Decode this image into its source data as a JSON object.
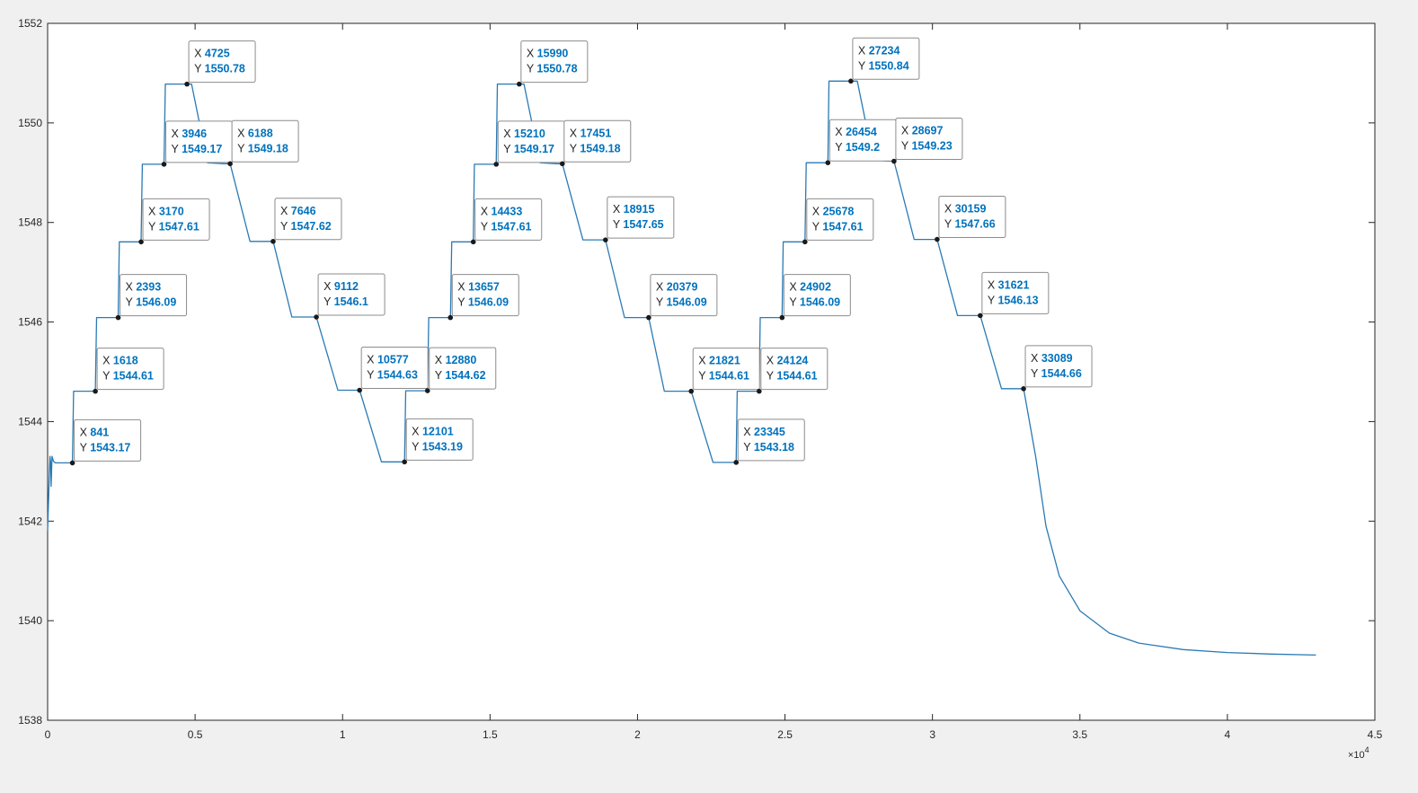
{
  "chart_data": {
    "type": "line",
    "title": "",
    "xlabel": "",
    "ylabel": "",
    "xlim": [
      0,
      45000
    ],
    "ylim": [
      1538,
      1552
    ],
    "x_exponent_label": "×10",
    "x_exponent_power": "4",
    "x_ticks": [
      0,
      0.5,
      1,
      1.5,
      2,
      2.5,
      3,
      3.5,
      4,
      4.5
    ],
    "x_tick_labels": [
      "0",
      "0.5",
      "1",
      "1.5",
      "2",
      "2.5",
      "3",
      "3.5",
      "4",
      "4.5"
    ],
    "y_ticks": [
      1538,
      1540,
      1542,
      1544,
      1546,
      1548,
      1550,
      1552
    ],
    "y_tick_labels": [
      "1538",
      "1540",
      "1542",
      "1544",
      "1546",
      "1548",
      "1550",
      "1552"
    ],
    "grid": false,
    "line_color": "#2a7ab5",
    "datatip_value_color": "#0072bd",
    "series": [
      {
        "x": [
          0,
          40,
          80,
          100,
          120,
          150,
          200,
          260,
          841,
          880,
          1618,
          1660,
          2393,
          2430,
          3170,
          3210,
          3946,
          3990,
          4725,
          4880,
          5420,
          5980,
          6188,
          6860,
          7646,
          8280,
          9112,
          9840,
          10577,
          11320,
          12101,
          12140,
          12880,
          12920,
          13657,
          13700,
          14433,
          14470,
          15210,
          15250,
          15990,
          16150,
          16700,
          17250,
          17451,
          18150,
          18915,
          19560,
          20379,
          20910,
          21821,
          22560,
          23345,
          23380,
          24124,
          24160,
          24902,
          24940,
          25678,
          25720,
          26454,
          26490,
          27234,
          27450,
          28000,
          28560,
          28697,
          29380,
          30159,
          30850,
          31621,
          32340,
          33089,
          33500,
          33850,
          34300,
          35000,
          36000,
          37000,
          38500,
          40000,
          41500,
          43000
        ],
        "y": [
          1541.8,
          1542.6,
          1543.3,
          1543.2,
          1542.7,
          1543.3,
          1543.2,
          1543.17,
          1543.17,
          1544.61,
          1544.61,
          1546.09,
          1546.09,
          1547.61,
          1547.61,
          1549.17,
          1549.17,
          1550.78,
          1550.78,
          1550.78,
          1549.2,
          1549.18,
          1549.18,
          1547.62,
          1547.62,
          1546.1,
          1546.1,
          1544.63,
          1544.63,
          1543.19,
          1543.19,
          1544.62,
          1544.62,
          1546.09,
          1546.09,
          1547.61,
          1547.61,
          1549.17,
          1549.17,
          1550.78,
          1550.78,
          1550.78,
          1549.2,
          1549.18,
          1549.18,
          1547.65,
          1547.65,
          1546.09,
          1546.09,
          1544.61,
          1544.61,
          1543.18,
          1543.18,
          1544.61,
          1544.61,
          1546.09,
          1546.09,
          1547.61,
          1547.61,
          1549.2,
          1549.2,
          1550.84,
          1550.84,
          1550.84,
          1549.25,
          1549.23,
          1549.23,
          1547.66,
          1547.66,
          1546.13,
          1546.13,
          1544.66,
          1544.66,
          1543.3,
          1541.9,
          1540.9,
          1540.2,
          1539.75,
          1539.55,
          1539.42,
          1539.36,
          1539.33,
          1539.31
        ]
      }
    ],
    "datatips": [
      {
        "x": "841",
        "y": "1543.17"
      },
      {
        "x": "1618",
        "y": "1544.61"
      },
      {
        "x": "2393",
        "y": "1546.09"
      },
      {
        "x": "3170",
        "y": "1547.61"
      },
      {
        "x": "3946",
        "y": "1549.17"
      },
      {
        "x": "4725",
        "y": "1550.78"
      },
      {
        "x": "6188",
        "y": "1549.18"
      },
      {
        "x": "7646",
        "y": "1547.62"
      },
      {
        "x": "9112",
        "y": "1546.1"
      },
      {
        "x": "10577",
        "y": "1544.63"
      },
      {
        "x": "12101",
        "y": "1543.19"
      },
      {
        "x": "12880",
        "y": "1544.62"
      },
      {
        "x": "13657",
        "y": "1546.09"
      },
      {
        "x": "14433",
        "y": "1547.61"
      },
      {
        "x": "15210",
        "y": "1549.17"
      },
      {
        "x": "15990",
        "y": "1550.78"
      },
      {
        "x": "17451",
        "y": "1549.18"
      },
      {
        "x": "18915",
        "y": "1547.65"
      },
      {
        "x": "20379",
        "y": "1546.09"
      },
      {
        "x": "21821",
        "y": "1544.61"
      },
      {
        "x": "23345",
        "y": "1543.18"
      },
      {
        "x": "24124",
        "y": "1544.61"
      },
      {
        "x": "24902",
        "y": "1546.09"
      },
      {
        "x": "25678",
        "y": "1547.61"
      },
      {
        "x": "26454",
        "y": "1549.2"
      },
      {
        "x": "27234",
        "y": "1550.84"
      },
      {
        "x": "28697",
        "y": "1549.23"
      },
      {
        "x": "30159",
        "y": "1547.66"
      },
      {
        "x": "31621",
        "y": "1546.13"
      },
      {
        "x": "33089",
        "y": "1544.66"
      }
    ]
  }
}
